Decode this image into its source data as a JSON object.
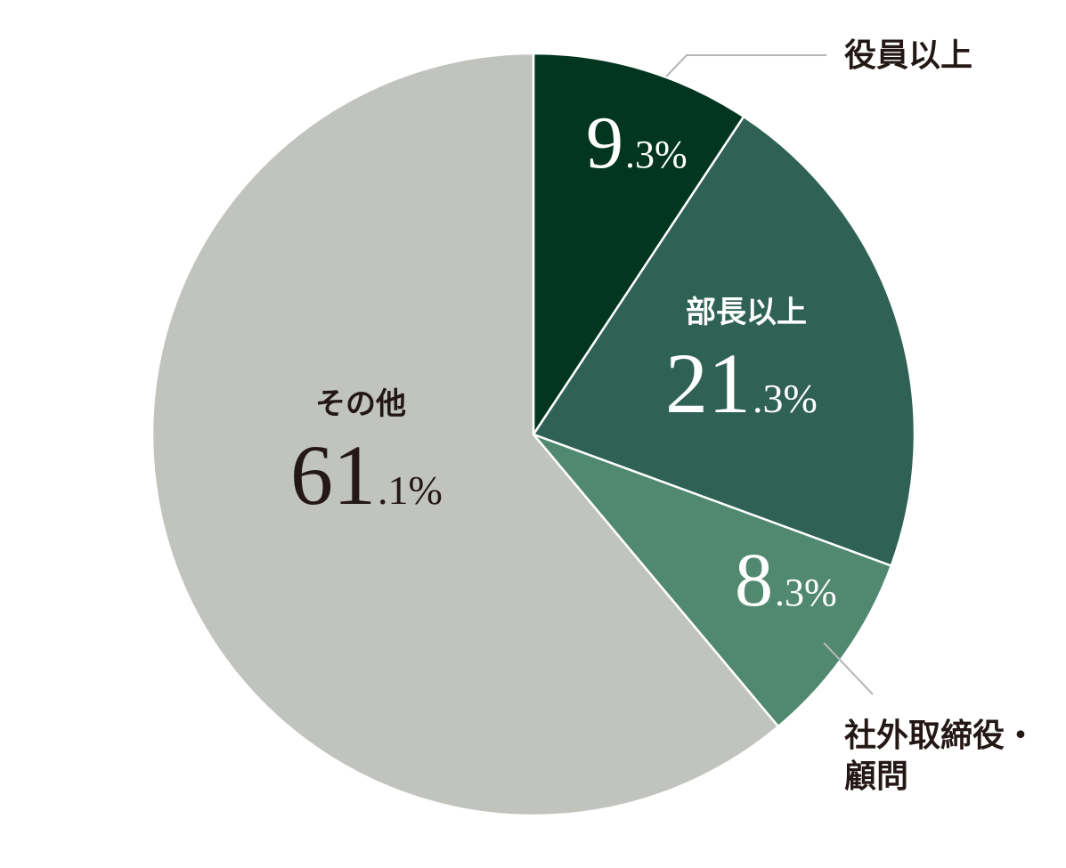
{
  "chart_data": {
    "type": "pie",
    "title": "",
    "slices": [
      {
        "label": "役員以上",
        "label_lines": [
          "役員以上"
        ],
        "value": 9.3,
        "int_part": "9",
        "dec_part": ".3%",
        "color": "#023620",
        "text_color": "#ffffff",
        "label_color": "#231815",
        "label_position": "outside"
      },
      {
        "label": "部長以上",
        "label_lines": [
          "部長以上"
        ],
        "value": 21.3,
        "int_part": "21",
        "dec_part": ".3%",
        "color": "#2f6254",
        "text_color": "#ffffff",
        "label_color": "#ffffff",
        "label_position": "inside"
      },
      {
        "label": "社外取締役・顧問",
        "label_lines": [
          "社外取締役・",
          "顧問"
        ],
        "value": 8.3,
        "int_part": "8",
        "dec_part": ".3%",
        "color": "#518970",
        "text_color": "#ffffff",
        "label_color": "#231815",
        "label_position": "outside"
      },
      {
        "label": "その他",
        "label_lines": [
          "その他"
        ],
        "value": 61.1,
        "int_part": "61",
        "dec_part": ".1%",
        "color": "#c1c3be",
        "text_color": "#231815",
        "label_color": "#231815",
        "label_position": "inside"
      }
    ],
    "start_angle": "12 o'clock",
    "direction": "clockwise",
    "legend": "none",
    "leader_line_color": "#b5b5b5",
    "separator_color": "#ffffff"
  }
}
